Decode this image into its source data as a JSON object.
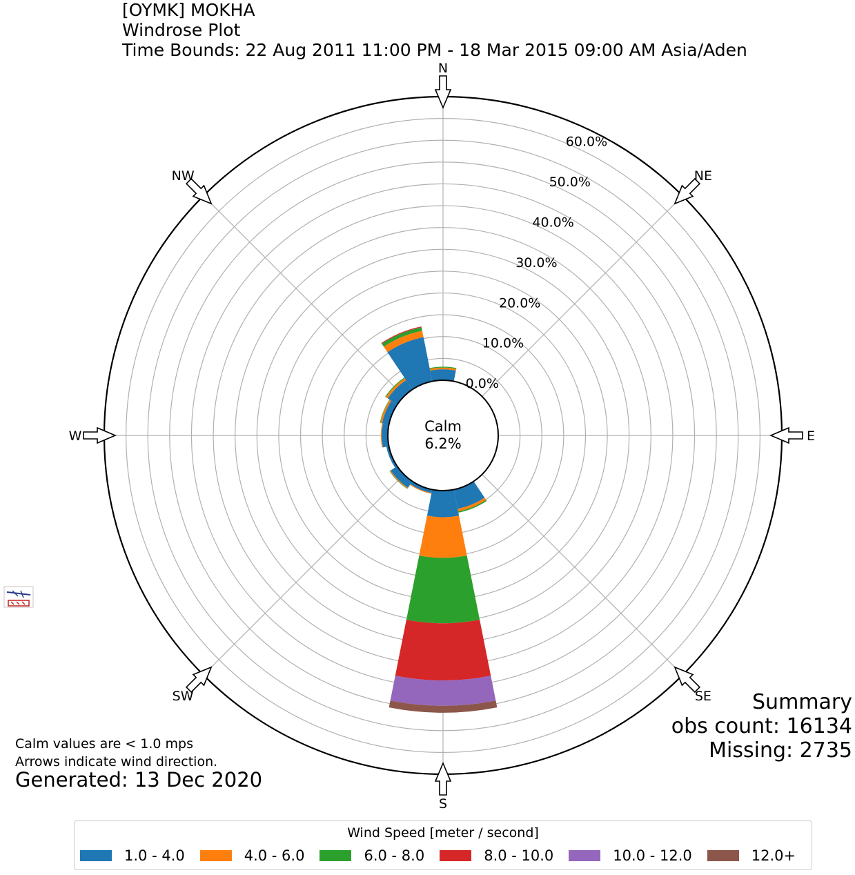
{
  "header": {
    "station": "[OYMK] MOKHA",
    "plot_type": "Windrose Plot",
    "time_bounds": "Time Bounds: 22 Aug 2011 11:00 PM - 18 Mar 2015 09:00 AM Asia/Aden"
  },
  "notes": {
    "calm_note": "Calm values are < 1.0 mps",
    "arrow_note": "Arrows indicate wind direction.",
    "generated": "Generated: 13 Dec 2020"
  },
  "summary": {
    "title": "Summary",
    "obs_count": "obs count: 16134",
    "missing": "Missing: 2735"
  },
  "calm": {
    "label": "Calm",
    "value": "6.2%"
  },
  "chart_data": {
    "type": "windrose",
    "directions": [
      "N",
      "NE",
      "E",
      "SE",
      "S",
      "SW",
      "W",
      "NW"
    ],
    "radial_unit": "%",
    "radial_ticks": [
      "0.0%",
      "10.0%",
      "20.0%",
      "30.0%",
      "40.0%",
      "50.0%",
      "60.0%"
    ],
    "rlim": [
      0,
      65
    ],
    "calm_percent": 6.2,
    "sector_count": 16,
    "sector_angles": [
      0,
      22.5,
      45,
      67.5,
      90,
      112.5,
      135,
      157.5,
      180,
      202.5,
      225,
      247.5,
      270,
      292.5,
      315,
      337.5
    ],
    "speed_bins": [
      {
        "name": "1.0 - 4.0",
        "color": "#1f77b4"
      },
      {
        "name": "4.0 - 6.0",
        "color": "#ff7f0e"
      },
      {
        "name": "6.0 - 8.0",
        "color": "#2ca02c"
      },
      {
        "name": "8.0 - 10.0",
        "color": "#d62728"
      },
      {
        "name": "10.0 - 12.0",
        "color": "#9467bd"
      },
      {
        "name": "12.0+",
        "color": "#8c564b"
      }
    ],
    "series": [
      {
        "name": "1.0 - 4.0",
        "values": [
          2.5,
          0,
          0,
          0,
          0,
          0,
          0,
          4.5,
          6.1,
          0.8,
          1.8,
          0.6,
          1.4,
          1.6,
          2.6,
          10.3
        ]
      },
      {
        "name": "4.0 - 6.0",
        "values": [
          0.4,
          0,
          0,
          0,
          0,
          0,
          0,
          0.6,
          9.3,
          0.2,
          0.2,
          0,
          0.2,
          0.4,
          0.5,
          1.5
        ]
      },
      {
        "name": "6.0 - 8.0",
        "values": [
          0.2,
          0,
          0,
          0,
          0,
          0,
          0,
          0.3,
          15.0,
          0,
          0.1,
          0,
          0,
          0.1,
          0.2,
          0.8
        ]
      },
      {
        "name": "8.0 - 10.0",
        "values": [
          0,
          0,
          0,
          0,
          0,
          0,
          0,
          0,
          13.1,
          0,
          0,
          0,
          0,
          0,
          0,
          0.2
        ]
      },
      {
        "name": "10.0 - 12.0",
        "values": [
          0,
          0,
          0,
          0,
          0,
          0,
          0,
          0,
          5.8,
          0,
          0,
          0,
          0,
          0,
          0,
          0
        ]
      },
      {
        "name": "12.0+",
        "values": [
          0,
          0,
          0,
          0,
          0,
          0,
          0,
          0,
          1.6,
          0,
          0,
          0,
          0,
          0,
          0,
          0
        ]
      }
    ],
    "legend": {
      "title": "Wind Speed [meter / second]",
      "placement": "bottom"
    },
    "grid": true
  }
}
